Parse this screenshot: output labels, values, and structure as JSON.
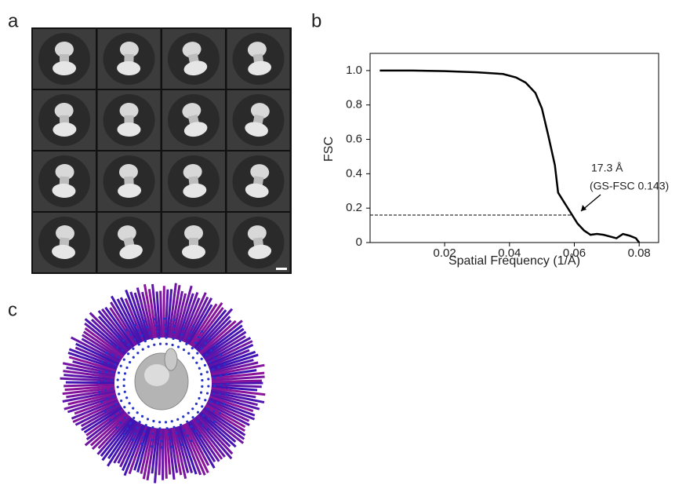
{
  "panels": {
    "a": "a",
    "b": "b",
    "c": "c"
  },
  "chart_data": {
    "type": "line",
    "xlabel": "Spatial Frequency (1/Å)",
    "ylabel": "FSC",
    "annotation": {
      "resolution": "17.3 Å",
      "criterion": "(GS-FSC 0.143)"
    },
    "x": [
      0,
      0.01,
      0.02,
      0.03,
      0.038,
      0.042,
      0.045,
      0.048,
      0.05,
      0.052,
      0.054,
      0.055,
      0.057,
      0.059,
      0.061,
      0.063,
      0.065,
      0.067,
      0.069,
      0.071,
      0.073,
      0.075,
      0.077,
      0.079,
      0.08
    ],
    "values": [
      1.0,
      1.0,
      0.997,
      0.99,
      0.98,
      0.96,
      0.93,
      0.87,
      0.78,
      0.62,
      0.45,
      0.29,
      0.23,
      0.17,
      0.11,
      0.07,
      0.045,
      0.05,
      0.045,
      0.035,
      0.025,
      0.05,
      0.04,
      0.025,
      0
    ],
    "color": "#000000",
    "reference_line": {
      "y": 0.16,
      "x_end": 0.059
    },
    "xlim": [
      -0.003,
      0.086
    ],
    "ylim": [
      0,
      1.1
    ],
    "xticks": [
      0.02,
      0.04,
      0.06,
      0.08
    ],
    "yticks": [
      0,
      0.2,
      0.4,
      0.6,
      0.8,
      {
        "value": 1,
        "label": "1.0"
      }
    ]
  }
}
